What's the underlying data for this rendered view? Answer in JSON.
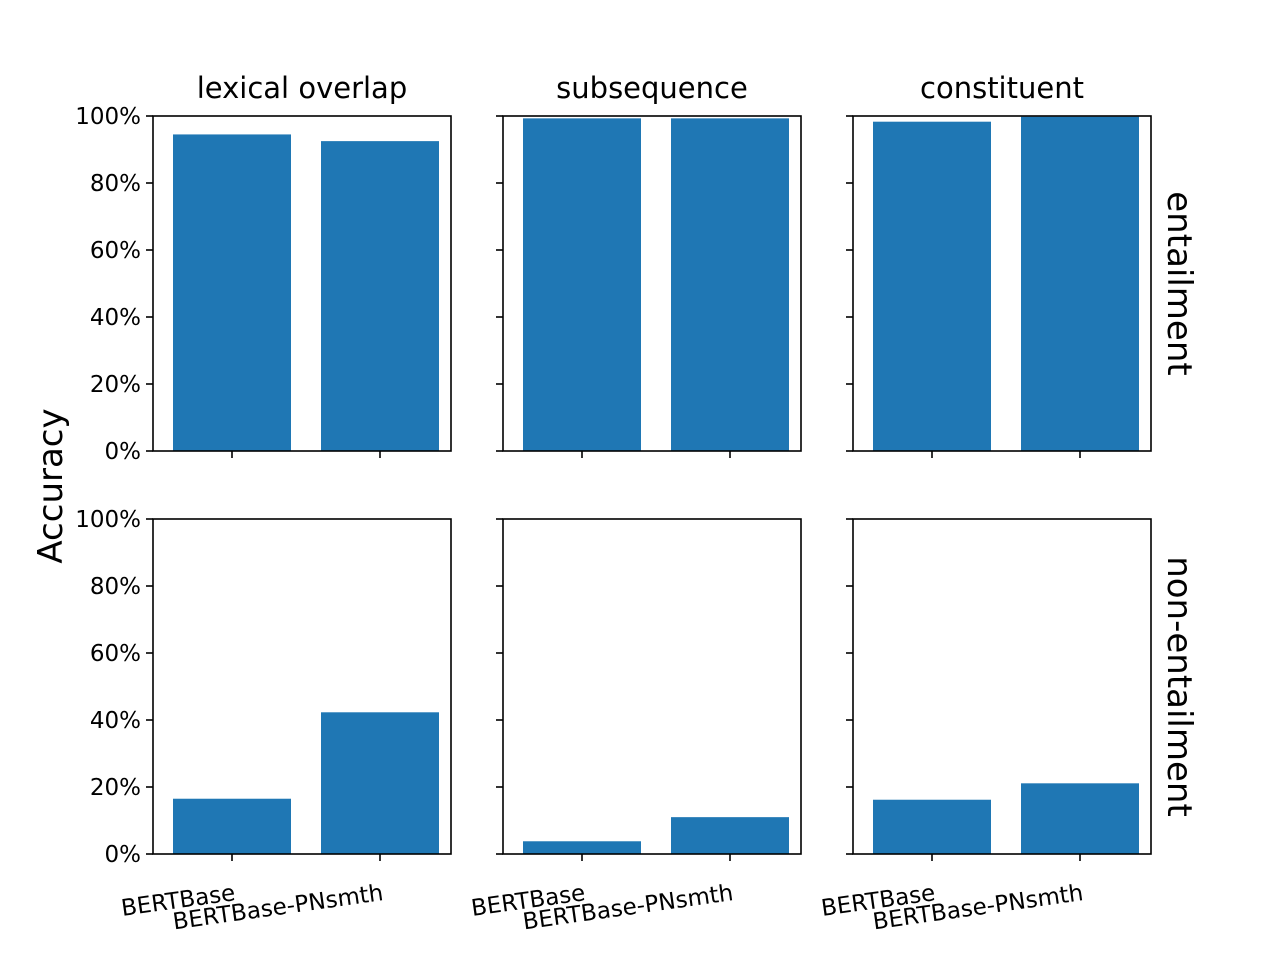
{
  "chart_data": {
    "type": "bar",
    "ylabel": "Accuracy",
    "ylim": [
      0,
      100
    ],
    "yticks": [
      "0%",
      "20%",
      "40%",
      "60%",
      "80%",
      "100%"
    ],
    "categories": [
      "BERTBase",
      "BERTBase-PNsmth"
    ],
    "bar_color": "#1f77b4",
    "column_titles": [
      "lexical overlap",
      "subsequence",
      "constituent"
    ],
    "row_labels": [
      "entailment",
      "non-entailment"
    ],
    "panels": [
      {
        "row": "entailment",
        "column": "lexical overlap",
        "values": [
          94.5,
          92.5
        ]
      },
      {
        "row": "entailment",
        "column": "subsequence",
        "values": [
          99.3,
          99.3
        ]
      },
      {
        "row": "entailment",
        "column": "constituent",
        "values": [
          98.3,
          99.8
        ]
      },
      {
        "row": "non-entailment",
        "column": "lexical overlap",
        "values": [
          16.5,
          42.3
        ]
      },
      {
        "row": "non-entailment",
        "column": "subsequence",
        "values": [
          3.8,
          11.0
        ]
      },
      {
        "row": "non-entailment",
        "column": "constituent",
        "values": [
          16.2,
          21.1
        ]
      }
    ]
  }
}
